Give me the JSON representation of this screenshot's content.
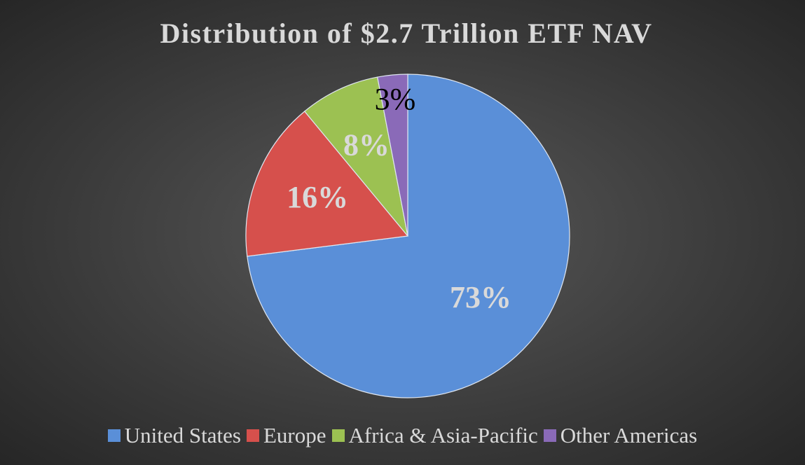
{
  "chart_data": {
    "type": "pie",
    "title": "Distribution of $2.7 Trillion ETF NAV",
    "categories": [
      "United States",
      "Europe",
      "Africa & Asia-Pacific",
      "Other Americas"
    ],
    "values": [
      73,
      16,
      8,
      3
    ],
    "value_labels": [
      "73%",
      "16%",
      "8%",
      "3%"
    ],
    "colors": [
      "#5a8fd8",
      "#d6504c",
      "#9cc152",
      "#8a6ab8"
    ],
    "label_colors": [
      "#d9d9d9",
      "#d9d9d9",
      "#d9d9d9",
      "#000000"
    ],
    "legend": "bottom"
  }
}
